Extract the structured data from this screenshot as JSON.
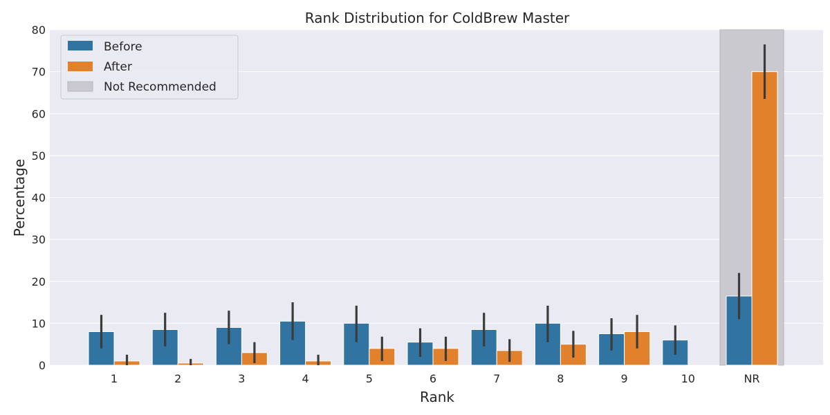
{
  "colors": {
    "plot_bg": "#EAEAF2",
    "grid": "#FFFFFF",
    "before": "#3274A1",
    "after": "#E1812C",
    "nr_band": "#C9C9CF",
    "nr_band_edge": "#B8B8BE",
    "error_bar": "#3B3B3B",
    "bar_edge": "#FFFFFF",
    "text": "#262626"
  },
  "chart_data": {
    "type": "bar",
    "title": "Rank Distribution for ColdBrew Master",
    "xlabel": "Rank",
    "ylabel": "Percentage",
    "categories": [
      "1",
      "2",
      "3",
      "4",
      "5",
      "6",
      "7",
      "8",
      "9",
      "10",
      "NR"
    ],
    "ylim": [
      0,
      80
    ],
    "yticks": [
      0,
      10,
      20,
      30,
      40,
      50,
      60,
      70,
      80
    ],
    "grid": true,
    "legend_position": "top-left",
    "series": [
      {
        "name": "Before",
        "color_key": "before",
        "values": [
          8.0,
          8.5,
          9.0,
          10.5,
          10.0,
          5.5,
          8.5,
          10.0,
          7.5,
          6.0,
          16.5
        ],
        "err_low": [
          4.0,
          4.5,
          5.0,
          6.0,
          5.5,
          2.0,
          4.5,
          5.5,
          3.5,
          2.5,
          11.0
        ],
        "err_high": [
          12.0,
          12.5,
          13.0,
          15.0,
          14.2,
          8.8,
          12.5,
          14.2,
          11.2,
          9.5,
          22.0
        ]
      },
      {
        "name": "After",
        "color_key": "after",
        "values": [
          1.0,
          0.5,
          3.0,
          1.0,
          4.0,
          4.0,
          3.5,
          5.0,
          8.0,
          0.0,
          70.0
        ],
        "err_low": [
          0.0,
          0.0,
          0.5,
          0.0,
          1.0,
          1.0,
          0.8,
          1.8,
          4.0,
          0.0,
          63.5
        ],
        "err_high": [
          2.5,
          1.5,
          5.5,
          2.5,
          6.8,
          6.8,
          6.2,
          8.2,
          12.0,
          0.0,
          76.5
        ]
      }
    ],
    "highlight": {
      "category": "NR",
      "label": "Not Recommended"
    }
  }
}
